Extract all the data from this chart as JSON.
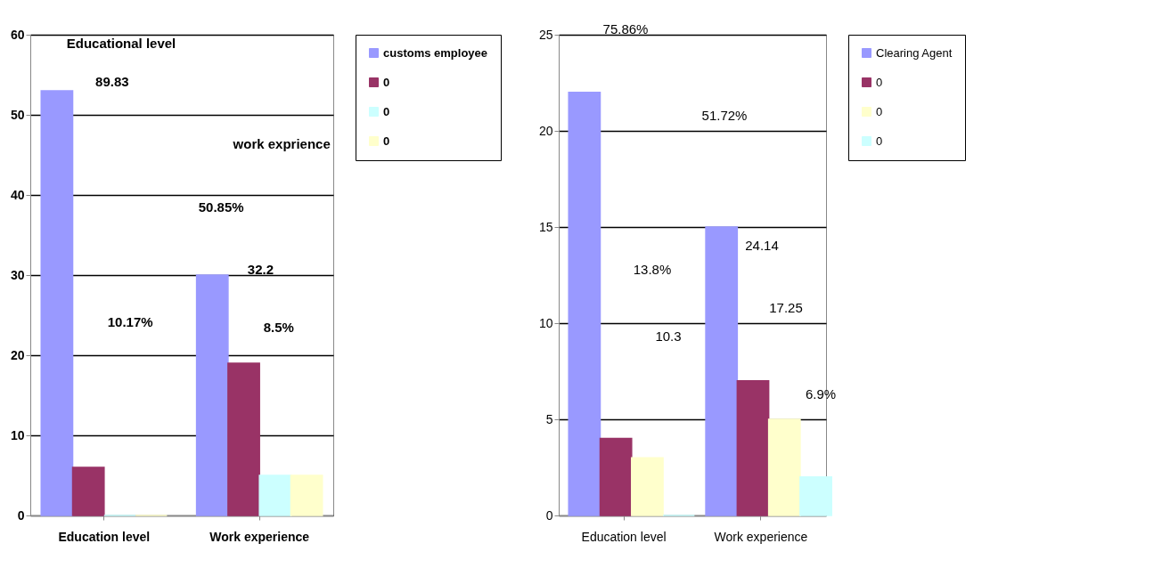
{
  "chart_data": [
    {
      "type": "bar",
      "categories": [
        "Education level",
        "Work experience"
      ],
      "series": [
        {
          "name": "customs employee",
          "color": "#9999ff",
          "values": [
            53,
            30
          ]
        },
        {
          "name": "0",
          "color": "#993366",
          "values": [
            6,
            19
          ]
        },
        {
          "name": "0",
          "color": "#ccffff",
          "values": [
            0,
            5
          ]
        },
        {
          "name": "0",
          "color": "#ffffcc",
          "values": [
            0,
            5
          ]
        }
      ],
      "ylim": [
        0,
        60
      ],
      "yticks": [
        0,
        10,
        20,
        30,
        40,
        50,
        60
      ],
      "grid": "y",
      "legend": "right",
      "annotations": [
        "Educational  level",
        "89.83",
        "work exprience",
        "50.85%",
        "32.2",
        "10.17%",
        "8.5%"
      ]
    },
    {
      "type": "bar",
      "categories": [
        "Education level",
        "Work experience"
      ],
      "series": [
        {
          "name": "Clearing Agent",
          "color": "#9999ff",
          "values": [
            22,
            15
          ]
        },
        {
          "name": "0",
          "color": "#993366",
          "values": [
            4,
            7
          ]
        },
        {
          "name": "0",
          "color": "#ffffcc",
          "values": [
            3,
            5
          ]
        },
        {
          "name": "0",
          "color": "#ccffff",
          "values": [
            0,
            2
          ]
        }
      ],
      "ylim": [
        0,
        25
      ],
      "yticks": [
        0,
        5,
        10,
        15,
        20,
        25
      ],
      "grid": "y",
      "legend": "right",
      "annotations": [
        "75.86%",
        "51.72%",
        "24.14",
        "13.8%",
        "10.3",
        "17.25",
        "6.9%"
      ]
    }
  ]
}
